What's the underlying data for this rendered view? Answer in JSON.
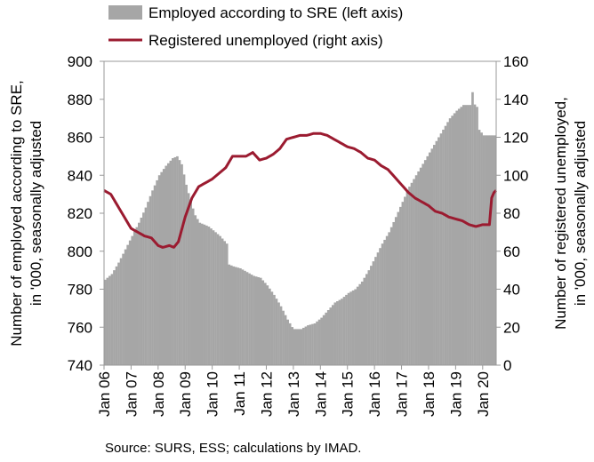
{
  "chart_data": {
    "type": "area",
    "legend": {
      "position": "top",
      "entries": [
        {
          "label": "Employed according to SRE (left axis)",
          "kind": "bar",
          "color": "#a6a6a6"
        },
        {
          "label": "Registered unemployed (right axis)",
          "kind": "line",
          "color": "#9b1b30"
        }
      ]
    },
    "left_axis": {
      "label_lines": [
        "Number of employed according to SRE,",
        "in '000, seasonally adjusted"
      ],
      "ylim": [
        740,
        900
      ],
      "ticks": [
        "740",
        "760",
        "780",
        "800",
        "820",
        "840",
        "860",
        "880",
        "900"
      ]
    },
    "right_axis": {
      "label_lines": [
        "Number of registered unemployed,",
        "in '000, seasonally adjusted"
      ],
      "ylim": [
        0,
        160
      ],
      "ticks": [
        "0",
        "20",
        "40",
        "60",
        "80",
        "100",
        "120",
        "140",
        "160"
      ]
    },
    "x_ticks": [
      "Jan 06",
      "Jan 07",
      "Jan 08",
      "Jan 09",
      "Jan 10",
      "Jan 11",
      "Jan 12",
      "Jan 13",
      "Jan 14",
      "Jan 15",
      "Jan 16",
      "Jan 17",
      "Jan 18",
      "Jan 19",
      "Jan 20"
    ],
    "x_range_years": [
      2006.0,
      2020.5
    ],
    "grid": false,
    "series": [
      {
        "name": "Employed according to SRE (left axis)",
        "axis": "left",
        "style": "bar",
        "anchors": [
          [
            2006.0,
            785
          ],
          [
            2006.25,
            788
          ],
          [
            2006.5,
            794
          ],
          [
            2006.75,
            801
          ],
          [
            2007.0,
            808
          ],
          [
            2007.25,
            815
          ],
          [
            2007.5,
            823
          ],
          [
            2007.75,
            832
          ],
          [
            2008.0,
            840
          ],
          [
            2008.25,
            845
          ],
          [
            2008.5,
            849
          ],
          [
            2008.67,
            850
          ],
          [
            2008.83,
            846
          ],
          [
            2009.0,
            835
          ],
          [
            2009.17,
            826
          ],
          [
            2009.33,
            819
          ],
          [
            2009.5,
            815
          ],
          [
            2009.67,
            814
          ],
          [
            2009.83,
            813
          ],
          [
            2010.0,
            811
          ],
          [
            2010.25,
            808
          ],
          [
            2010.5,
            804
          ],
          [
            2010.58,
            793
          ],
          [
            2010.75,
            792
          ],
          [
            2011.0,
            791
          ],
          [
            2011.25,
            789
          ],
          [
            2011.5,
            787
          ],
          [
            2011.75,
            786
          ],
          [
            2012.0,
            782
          ],
          [
            2012.25,
            777
          ],
          [
            2012.5,
            771
          ],
          [
            2012.75,
            764
          ],
          [
            2012.92,
            760
          ],
          [
            2013.0,
            759
          ],
          [
            2013.25,
            759
          ],
          [
            2013.5,
            761
          ],
          [
            2013.75,
            762
          ],
          [
            2014.0,
            765
          ],
          [
            2014.25,
            769
          ],
          [
            2014.5,
            773
          ],
          [
            2014.75,
            775
          ],
          [
            2015.0,
            778
          ],
          [
            2015.25,
            780
          ],
          [
            2015.5,
            784
          ],
          [
            2015.75,
            790
          ],
          [
            2016.0,
            797
          ],
          [
            2016.25,
            804
          ],
          [
            2016.5,
            810
          ],
          [
            2016.75,
            818
          ],
          [
            2017.0,
            826
          ],
          [
            2017.25,
            834
          ],
          [
            2017.5,
            840
          ],
          [
            2017.75,
            846
          ],
          [
            2018.0,
            852
          ],
          [
            2018.25,
            858
          ],
          [
            2018.5,
            864
          ],
          [
            2018.75,
            870
          ],
          [
            2019.0,
            874
          ],
          [
            2019.25,
            877
          ],
          [
            2019.5,
            877
          ],
          [
            2019.58,
            884
          ],
          [
            2019.67,
            877
          ],
          [
            2019.75,
            876
          ],
          [
            2019.83,
            864
          ],
          [
            2020.0,
            861
          ],
          [
            2020.5,
            861
          ]
        ]
      },
      {
        "name": "Registered unemployed (right axis)",
        "axis": "right",
        "style": "line",
        "color": "#9b1b30",
        "anchors": [
          [
            2006.0,
            92
          ],
          [
            2006.25,
            90
          ],
          [
            2006.5,
            84
          ],
          [
            2006.75,
            78
          ],
          [
            2007.0,
            72
          ],
          [
            2007.25,
            70
          ],
          [
            2007.5,
            68
          ],
          [
            2007.75,
            67
          ],
          [
            2008.0,
            63
          ],
          [
            2008.17,
            62
          ],
          [
            2008.42,
            63
          ],
          [
            2008.58,
            62
          ],
          [
            2008.75,
            65
          ],
          [
            2009.0,
            78
          ],
          [
            2009.25,
            88
          ],
          [
            2009.5,
            94
          ],
          [
            2009.75,
            96
          ],
          [
            2010.0,
            98
          ],
          [
            2010.25,
            101
          ],
          [
            2010.5,
            104
          ],
          [
            2010.75,
            110
          ],
          [
            2011.0,
            110
          ],
          [
            2011.25,
            110
          ],
          [
            2011.5,
            112
          ],
          [
            2011.75,
            108
          ],
          [
            2012.0,
            109
          ],
          [
            2012.25,
            111
          ],
          [
            2012.5,
            114
          ],
          [
            2012.75,
            119
          ],
          [
            2013.0,
            120
          ],
          [
            2013.25,
            121
          ],
          [
            2013.5,
            121
          ],
          [
            2013.75,
            122
          ],
          [
            2014.0,
            122
          ],
          [
            2014.25,
            121
          ],
          [
            2014.5,
            119
          ],
          [
            2014.75,
            117
          ],
          [
            2015.0,
            115
          ],
          [
            2015.25,
            114
          ],
          [
            2015.5,
            112
          ],
          [
            2015.75,
            109
          ],
          [
            2016.0,
            108
          ],
          [
            2016.25,
            105
          ],
          [
            2016.5,
            103
          ],
          [
            2016.75,
            99
          ],
          [
            2017.0,
            95
          ],
          [
            2017.25,
            91
          ],
          [
            2017.5,
            88
          ],
          [
            2017.75,
            86
          ],
          [
            2018.0,
            84
          ],
          [
            2018.25,
            81
          ],
          [
            2018.5,
            80
          ],
          [
            2018.75,
            78
          ],
          [
            2019.0,
            77
          ],
          [
            2019.25,
            76
          ],
          [
            2019.5,
            74
          ],
          [
            2019.75,
            73
          ],
          [
            2020.0,
            74
          ],
          [
            2020.25,
            74
          ],
          [
            2020.33,
            88
          ],
          [
            2020.42,
            91
          ],
          [
            2020.5,
            92
          ]
        ]
      }
    ],
    "source": "Source: SURS, ESS; calculations by IMAD."
  }
}
